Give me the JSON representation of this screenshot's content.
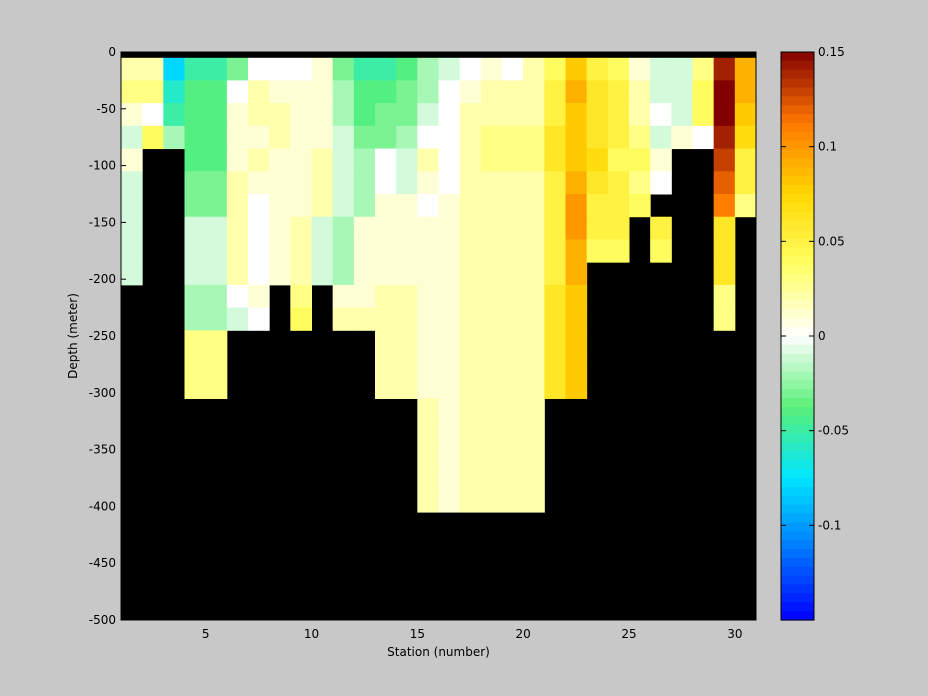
{
  "chart_data": {
    "type": "heatmap",
    "xlabel": "Station (number)",
    "ylabel": "Depth (meter)",
    "xlim": [
      1,
      31
    ],
    "ylim": [
      -500,
      0
    ],
    "xticks": [
      5,
      10,
      15,
      20,
      25,
      30
    ],
    "yticks": [
      0,
      -50,
      -100,
      -150,
      -200,
      -250,
      -300,
      -350,
      -400,
      -450,
      -500
    ],
    "colorbar": {
      "range": [
        -0.15,
        0.15
      ],
      "ticks": [
        0.15,
        0.1,
        0.05,
        0,
        -0.05,
        -0.1
      ],
      "colormap": "jet-white-centered",
      "no_data_color": "#000000"
    },
    "stations": [
      1,
      2,
      3,
      4,
      5,
      6,
      7,
      8,
      9,
      10,
      11,
      12,
      13,
      14,
      15,
      16,
      17,
      18,
      19,
      20,
      21,
      22,
      23,
      24,
      25,
      26,
      27,
      28,
      29,
      30
    ],
    "depths": [
      -10,
      -30,
      -50,
      -70,
      -90,
      -110,
      -130,
      -150,
      -170,
      -190,
      -210,
      -230,
      -250,
      -270,
      -290,
      -310,
      -330,
      -350,
      -370,
      -390
    ],
    "values": [
      [
        0.02,
        0.02,
        -0.08,
        -0.05,
        -0.05,
        -0.03,
        0.0,
        0.0,
        0.0,
        0.01,
        -0.03,
        -0.05,
        -0.05,
        -0.04,
        -0.02,
        -0.01,
        0.0,
        0.01,
        0.0,
        0.02,
        0.04,
        0.08,
        0.05,
        0.04,
        0.01,
        -0.01,
        -0.01,
        0.03,
        0.14,
        0.09
      ],
      [
        0.03,
        0.03,
        -0.06,
        -0.04,
        -0.04,
        0.0,
        0.02,
        0.01,
        0.01,
        0.01,
        -0.02,
        -0.04,
        -0.04,
        -0.03,
        -0.02,
        0.0,
        0.01,
        0.02,
        0.02,
        0.02,
        0.05,
        0.09,
        0.06,
        0.05,
        0.02,
        -0.01,
        -0.01,
        0.04,
        0.15,
        0.09
      ],
      [
        0.01,
        0.0,
        -0.05,
        -0.04,
        -0.04,
        0.01,
        0.02,
        0.02,
        0.01,
        0.01,
        -0.02,
        -0.04,
        -0.03,
        -0.03,
        -0.01,
        0.0,
        0.02,
        0.02,
        0.02,
        0.02,
        0.05,
        0.08,
        0.06,
        0.05,
        0.02,
        0.0,
        -0.01,
        0.04,
        0.15,
        0.08
      ],
      [
        -0.01,
        0.04,
        -0.02,
        -0.04,
        -0.04,
        0.01,
        0.01,
        0.02,
        0.01,
        0.01,
        -0.01,
        -0.03,
        -0.03,
        -0.02,
        0.0,
        0.0,
        0.02,
        0.03,
        0.03,
        0.03,
        0.06,
        0.08,
        0.06,
        0.05,
        0.03,
        -0.01,
        0.01,
        0.0,
        0.14,
        0.07
      ],
      [
        0.01,
        null,
        null,
        -0.04,
        -0.04,
        0.01,
        0.02,
        0.01,
        0.01,
        0.02,
        -0.01,
        -0.02,
        0.0,
        -0.01,
        0.02,
        0.0,
        0.02,
        0.03,
        0.03,
        0.03,
        0.06,
        0.08,
        0.07,
        0.04,
        0.04,
        0.01,
        null,
        null,
        0.13,
        0.05
      ],
      [
        -0.01,
        null,
        null,
        -0.03,
        -0.03,
        0.02,
        0.01,
        0.01,
        0.01,
        0.02,
        -0.01,
        -0.02,
        0.0,
        -0.01,
        0.01,
        0.0,
        0.02,
        0.02,
        0.02,
        0.02,
        0.05,
        0.09,
        0.06,
        0.05,
        0.03,
        0.0,
        null,
        null,
        0.12,
        0.05
      ],
      [
        -0.01,
        null,
        null,
        -0.03,
        -0.03,
        0.02,
        0.0,
        0.01,
        0.01,
        0.02,
        -0.01,
        -0.02,
        0.01,
        0.01,
        0.0,
        0.01,
        0.02,
        0.02,
        0.02,
        0.02,
        0.05,
        0.1,
        0.05,
        0.05,
        0.04,
        null,
        null,
        null,
        0.11,
        0.03
      ],
      [
        -0.01,
        null,
        null,
        -0.01,
        -0.01,
        0.02,
        0.0,
        0.01,
        0.02,
        -0.01,
        -0.02,
        0.01,
        0.01,
        0.01,
        0.01,
        0.01,
        0.02,
        0.02,
        0.02,
        0.02,
        0.05,
        0.1,
        0.05,
        0.05,
        null,
        0.05,
        null,
        null,
        0.06,
        null
      ],
      [
        -0.01,
        null,
        null,
        -0.01,
        -0.01,
        0.02,
        0.0,
        0.01,
        0.02,
        -0.01,
        -0.02,
        0.01,
        0.01,
        0.01,
        0.01,
        0.01,
        0.02,
        0.02,
        0.02,
        0.02,
        0.05,
        0.09,
        0.04,
        0.04,
        null,
        0.04,
        null,
        null,
        0.06,
        null
      ],
      [
        -0.01,
        null,
        null,
        -0.01,
        -0.01,
        0.02,
        0.0,
        0.01,
        0.02,
        -0.01,
        -0.02,
        0.01,
        0.01,
        0.01,
        0.01,
        0.01,
        0.02,
        0.02,
        0.02,
        0.02,
        0.05,
        0.09,
        null,
        null,
        null,
        null,
        null,
        null,
        0.06,
        null
      ],
      [
        null,
        null,
        null,
        -0.02,
        -0.02,
        0.0,
        0.01,
        null,
        0.03,
        null,
        0.01,
        0.01,
        0.02,
        0.02,
        0.01,
        0.01,
        0.02,
        0.02,
        0.02,
        0.02,
        0.06,
        0.08,
        null,
        null,
        null,
        null,
        null,
        null,
        0.03,
        null
      ],
      [
        null,
        null,
        null,
        -0.02,
        -0.02,
        -0.01,
        0.0,
        null,
        0.04,
        null,
        0.02,
        0.02,
        0.02,
        0.02,
        0.01,
        0.01,
        0.02,
        0.02,
        0.02,
        0.02,
        0.06,
        0.08,
        null,
        null,
        null,
        null,
        null,
        null,
        0.03,
        null
      ],
      [
        null,
        null,
        null,
        0.03,
        0.03,
        null,
        null,
        null,
        null,
        null,
        null,
        null,
        0.02,
        0.02,
        0.01,
        0.01,
        0.02,
        0.02,
        0.02,
        0.02,
        0.06,
        0.08,
        null,
        null,
        null,
        null,
        null,
        null,
        null,
        null
      ],
      [
        null,
        null,
        null,
        0.03,
        0.03,
        null,
        null,
        null,
        null,
        null,
        null,
        null,
        0.02,
        0.02,
        0.01,
        0.01,
        0.02,
        0.02,
        0.02,
        0.02,
        0.06,
        0.08,
        null,
        null,
        null,
        null,
        null,
        null,
        null,
        null
      ],
      [
        null,
        null,
        null,
        0.03,
        0.03,
        null,
        null,
        null,
        null,
        null,
        null,
        null,
        0.02,
        0.02,
        0.01,
        0.01,
        0.02,
        0.02,
        0.02,
        0.02,
        0.06,
        0.08,
        null,
        null,
        null,
        null,
        null,
        null,
        null,
        null
      ],
      [
        null,
        null,
        null,
        null,
        null,
        null,
        null,
        null,
        null,
        null,
        null,
        null,
        null,
        null,
        0.02,
        0.01,
        0.02,
        0.02,
        0.02,
        0.02,
        null,
        null,
        null,
        null,
        null,
        null,
        null,
        null,
        null,
        null
      ],
      [
        null,
        null,
        null,
        null,
        null,
        null,
        null,
        null,
        null,
        null,
        null,
        null,
        null,
        null,
        0.02,
        0.01,
        0.02,
        0.02,
        0.02,
        0.02,
        null,
        null,
        null,
        null,
        null,
        null,
        null,
        null,
        null,
        null
      ],
      [
        null,
        null,
        null,
        null,
        null,
        null,
        null,
        null,
        null,
        null,
        null,
        null,
        null,
        null,
        0.02,
        0.01,
        0.02,
        0.02,
        0.02,
        0.02,
        null,
        null,
        null,
        null,
        null,
        null,
        null,
        null,
        null,
        null
      ],
      [
        null,
        null,
        null,
        null,
        null,
        null,
        null,
        null,
        null,
        null,
        null,
        null,
        null,
        null,
        0.02,
        0.01,
        0.02,
        0.02,
        0.02,
        0.02,
        null,
        null,
        null,
        null,
        null,
        null,
        null,
        null,
        null,
        null
      ],
      [
        null,
        null,
        null,
        null,
        null,
        null,
        null,
        null,
        null,
        null,
        null,
        null,
        null,
        null,
        0.02,
        0.01,
        0.02,
        0.02,
        0.02,
        0.02,
        null,
        null,
        null,
        null,
        null,
        null,
        null,
        null,
        null,
        null
      ]
    ]
  }
}
